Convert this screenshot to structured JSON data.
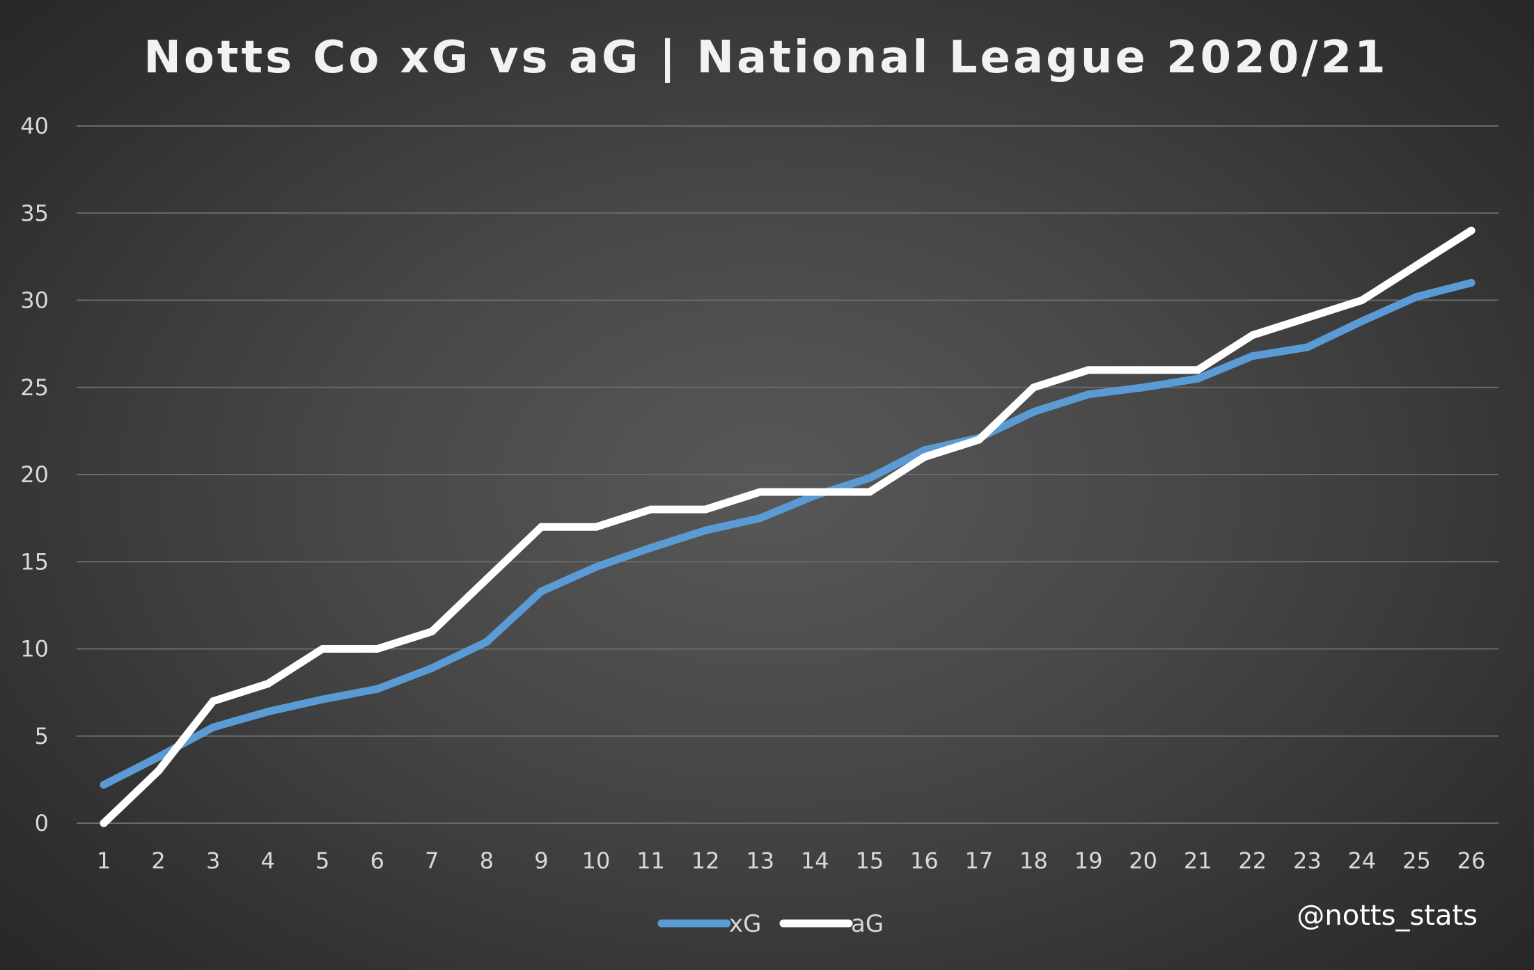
{
  "chart_data": {
    "type": "line",
    "title": "Notts Co xG vs aG | National League 2020/21",
    "xlabel": "",
    "ylabel": "",
    "categories": [
      "1",
      "2",
      "3",
      "4",
      "5",
      "6",
      "7",
      "8",
      "9",
      "10",
      "11",
      "12",
      "13",
      "14",
      "15",
      "16",
      "17",
      "18",
      "19",
      "20",
      "21",
      "22",
      "23",
      "24",
      "25",
      "26"
    ],
    "ylim": [
      0,
      40
    ],
    "yticks": [
      0,
      5,
      10,
      15,
      20,
      25,
      30,
      35,
      40
    ],
    "grid": true,
    "legend": "bottom",
    "series": [
      {
        "name": "xG",
        "color": "#5b9bd5",
        "values": [
          2.2,
          3.8,
          5.5,
          6.4,
          7.1,
          7.7,
          8.9,
          10.4,
          13.3,
          14.7,
          15.8,
          16.8,
          17.5,
          18.8,
          19.8,
          21.4,
          22.1,
          23.6,
          24.6,
          25.0,
          25.5,
          26.8,
          27.3,
          28.8,
          30.2,
          31.0
        ]
      },
      {
        "name": "aG",
        "color": "#ffffff",
        "values": [
          0,
          3,
          7,
          8,
          10,
          10,
          11,
          14,
          17,
          17,
          18,
          18,
          19,
          19,
          19,
          21,
          22,
          25,
          26,
          26,
          26,
          28,
          29,
          30,
          32,
          34
        ]
      }
    ],
    "annotations": [
      "@notts_stats"
    ]
  }
}
